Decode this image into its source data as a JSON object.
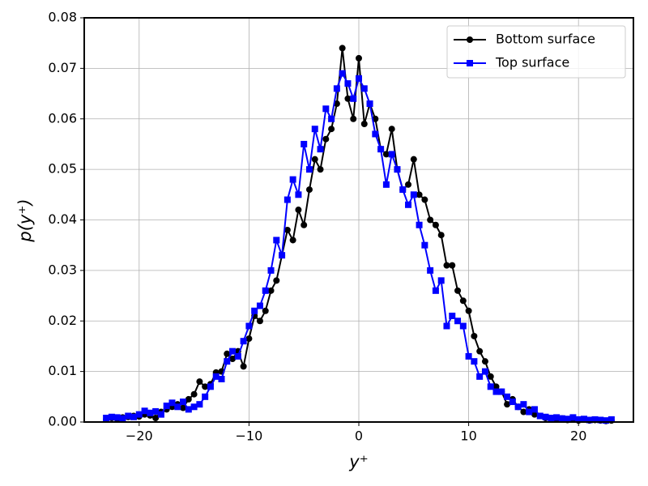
{
  "chart_data": {
    "type": "line",
    "xlabel": "y⁺",
    "ylabel": "p(y⁺)",
    "x": [
      -23,
      -22.5,
      -22,
      -21.5,
      -21,
      -20.5,
      -20,
      -19.5,
      -19,
      -18.5,
      -18,
      -17.5,
      -17,
      -16.5,
      -16,
      -15.5,
      -15,
      -14.5,
      -14,
      -13.5,
      -13,
      -12.5,
      -12,
      -11.5,
      -11,
      -10.5,
      -10,
      -9.5,
      -9,
      -8.5,
      -8,
      -7.5,
      -7,
      -6.5,
      -6,
      -5.5,
      -5,
      -4.5,
      -4,
      -3.5,
      -3,
      -2.5,
      -2,
      -1.5,
      -1,
      -0.5,
      0,
      0.5,
      1,
      1.5,
      2,
      2.5,
      3,
      3.5,
      4,
      4.5,
      5,
      5.5,
      6,
      6.5,
      7,
      7.5,
      8,
      8.5,
      9,
      9.5,
      10,
      10.5,
      11,
      11.5,
      12,
      12.5,
      13,
      13.5,
      14,
      14.5,
      15,
      15.5,
      16,
      16.5,
      17,
      17.5,
      18,
      18.5,
      19,
      19.5,
      20,
      20.5,
      21,
      21.5,
      22,
      22.5,
      23
    ],
    "series": [
      {
        "name": "Bottom surface",
        "color": "#000000",
        "marker": "circle",
        "values": [
          0.0005,
          0.0008,
          0.0006,
          0.0009,
          0.001,
          0.0012,
          0.0011,
          0.0015,
          0.0013,
          0.0008,
          0.002,
          0.0025,
          0.003,
          0.0035,
          0.0028,
          0.0045,
          0.0055,
          0.008,
          0.007,
          0.0075,
          0.0098,
          0.01,
          0.0135,
          0.0125,
          0.014,
          0.011,
          0.0165,
          0.021,
          0.02,
          0.022,
          0.026,
          0.028,
          0.033,
          0.038,
          0.036,
          0.042,
          0.039,
          0.046,
          0.052,
          0.05,
          0.056,
          0.058,
          0.063,
          0.074,
          0.064,
          0.06,
          0.072,
          0.059,
          0.063,
          0.06,
          0.054,
          0.053,
          0.058,
          0.05,
          0.046,
          0.047,
          0.052,
          0.045,
          0.044,
          0.04,
          0.039,
          0.037,
          0.031,
          0.031,
          0.026,
          0.024,
          0.022,
          0.017,
          0.014,
          0.012,
          0.009,
          0.007,
          0.006,
          0.0035,
          0.0045,
          0.003,
          0.002,
          0.0025,
          0.0015,
          0.0012,
          0.0008,
          0.0006,
          0.0005,
          0.0007,
          0.0004,
          0.0006,
          0.0003,
          0.0005,
          0.0003,
          0.0004,
          0.0003,
          0.0002,
          0.0003
        ]
      },
      {
        "name": "Top surface",
        "color": "#0000ff",
        "marker": "square",
        "values": [
          0.0008,
          0.001,
          0.0009,
          0.0007,
          0.0012,
          0.001,
          0.0015,
          0.0022,
          0.0018,
          0.0021,
          0.0015,
          0.0032,
          0.0038,
          0.003,
          0.004,
          0.0025,
          0.003,
          0.0035,
          0.005,
          0.007,
          0.009,
          0.0085,
          0.012,
          0.014,
          0.013,
          0.016,
          0.019,
          0.022,
          0.023,
          0.026,
          0.03,
          0.036,
          0.033,
          0.044,
          0.048,
          0.045,
          0.055,
          0.05,
          0.058,
          0.054,
          0.062,
          0.06,
          0.066,
          0.069,
          0.067,
          0.064,
          0.068,
          0.066,
          0.063,
          0.057,
          0.054,
          0.047,
          0.053,
          0.05,
          0.046,
          0.043,
          0.045,
          0.039,
          0.035,
          0.03,
          0.026,
          0.028,
          0.019,
          0.021,
          0.02,
          0.019,
          0.013,
          0.012,
          0.009,
          0.01,
          0.007,
          0.006,
          0.006,
          0.005,
          0.004,
          0.003,
          0.0035,
          0.002,
          0.0025,
          0.0012,
          0.001,
          0.0008,
          0.0009,
          0.0007,
          0.0006,
          0.0009,
          0.0005,
          0.0006,
          0.0004,
          0.0005,
          0.0004,
          0.0003,
          0.0005
        ]
      }
    ],
    "xlim": [
      -25,
      25
    ],
    "ylim": [
      0,
      0.08
    ],
    "xticks": [
      {
        "value": -20,
        "label": "−20"
      },
      {
        "value": -10,
        "label": "−10"
      },
      0,
      10,
      20
    ],
    "yticks": [
      {
        "value": 0,
        "label": "0.00"
      },
      0.01,
      0.02,
      0.03,
      0.04,
      0.05,
      0.06,
      0.07,
      0.08
    ],
    "grid": true,
    "legend": "upper right"
  }
}
